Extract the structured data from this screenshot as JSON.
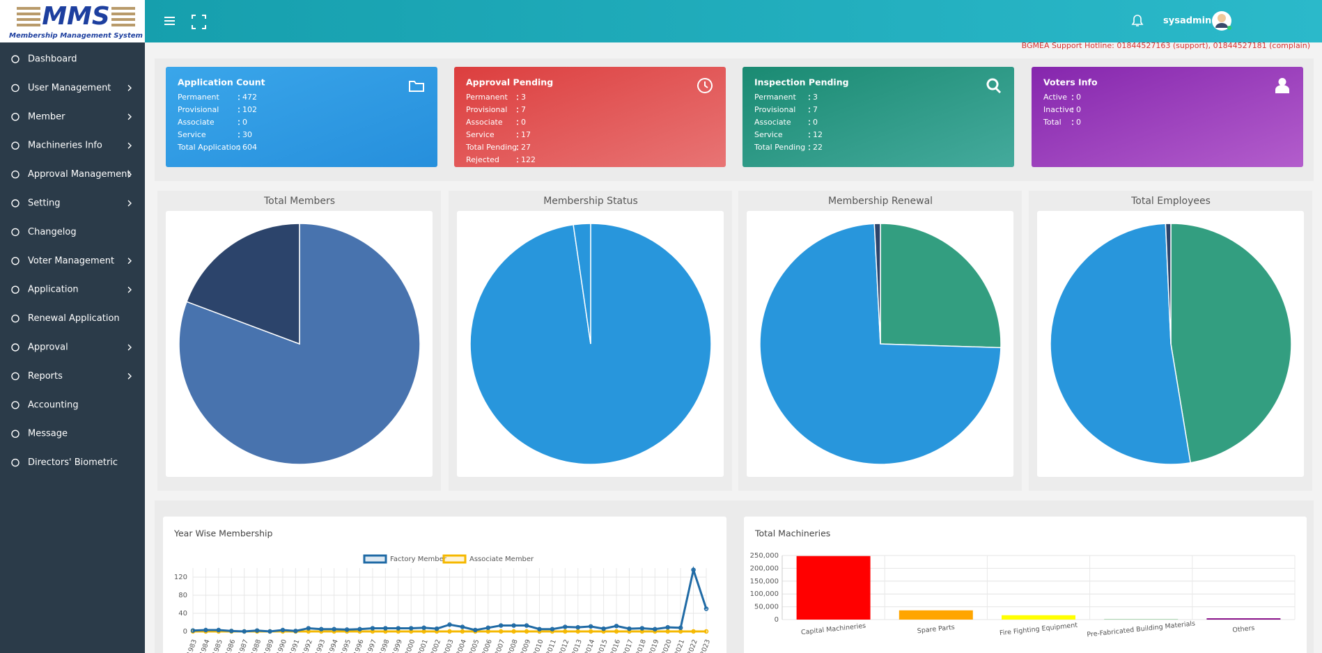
{
  "logo": {
    "mark": "MMS",
    "subtitle": "Membership Management System"
  },
  "menu": [
    {
      "label": "Dashboard",
      "submenu": false
    },
    {
      "label": "User Management",
      "submenu": true
    },
    {
      "label": "Member",
      "submenu": true
    },
    {
      "label": "Machineries Info",
      "submenu": true
    },
    {
      "label": "Approval Management",
      "submenu": true
    },
    {
      "label": "Setting",
      "submenu": true
    },
    {
      "label": "Changelog",
      "submenu": false
    },
    {
      "label": "Voter Management",
      "submenu": true
    },
    {
      "label": "Application",
      "submenu": true
    },
    {
      "label": "Renewal Application",
      "submenu": false
    },
    {
      "label": "Approval",
      "submenu": true
    },
    {
      "label": "Reports",
      "submenu": true
    },
    {
      "label": "Accounting",
      "submenu": false
    },
    {
      "label": "Message",
      "submenu": false
    },
    {
      "label": "Directors' Biometric",
      "submenu": false
    }
  ],
  "header": {
    "user": "sysadmin",
    "hotline": "BGMEA Support Hotline: 01844527163 (support), 01844527181 (complain)"
  },
  "cards": [
    {
      "title": "Application Count",
      "icon": "folder",
      "colors": [
        "#3aa6ea",
        "#268fdc"
      ],
      "rows": [
        {
          "label": "Permanent",
          "value": 472
        },
        {
          "label": "Provisional",
          "value": 102
        },
        {
          "label": "Associate",
          "value": 0
        },
        {
          "label": "Service",
          "value": 30
        },
        {
          "label": "Total Application",
          "value": 604
        }
      ]
    },
    {
      "title": "Approval Pending",
      "icon": "clock",
      "colors": [
        "#dc3e3e",
        "#e87474"
      ],
      "rows": [
        {
          "label": "Permanent",
          "value": 3
        },
        {
          "label": "Provisional",
          "value": 7
        },
        {
          "label": "Associate",
          "value": 0
        },
        {
          "label": "Service",
          "value": 17
        },
        {
          "label": "Total Pending",
          "value": 27
        },
        {
          "label": "Rejected",
          "value": 122
        }
      ]
    },
    {
      "title": "Inspection Pending",
      "icon": "search",
      "colors": [
        "#1a8a72",
        "#44aa9c"
      ],
      "rows": [
        {
          "label": "Permanent",
          "value": 3
        },
        {
          "label": "Provisional",
          "value": 7
        },
        {
          "label": "Associate",
          "value": 0
        },
        {
          "label": "Service",
          "value": 12
        },
        {
          "label": "Total Pending",
          "value": 22
        }
      ]
    },
    {
      "title": "Voters Info",
      "icon": "user",
      "colors": [
        "#8526ad",
        "#b35dcc"
      ],
      "rows": [
        {
          "label": "Active",
          "value": 0
        },
        {
          "label": "Inactive",
          "value": 0
        },
        {
          "label": "Total",
          "value": 0
        }
      ]
    }
  ],
  "chart_data": [
    {
      "type": "pie",
      "title": "Total Members",
      "values": [
        80.7,
        19.3
      ],
      "colors": [
        "#4873ae",
        "#2c446b"
      ]
    },
    {
      "type": "pie",
      "title": "Membership Status",
      "values": [
        97.7,
        2.3
      ],
      "colors": [
        "#2896dc",
        "#2896dc"
      ]
    },
    {
      "type": "pie",
      "title": "Membership Renewal",
      "values": [
        25.5,
        73.7,
        0.8
      ],
      "colors": [
        "#339e80",
        "#2896dc",
        "#2c446b"
      ]
    },
    {
      "type": "pie",
      "title": "Total Employees",
      "values": [
        47.4,
        51.9,
        0.7
      ],
      "colors": [
        "#339e80",
        "#2896dc",
        "#2c446b"
      ]
    },
    {
      "type": "line",
      "title": "Year Wise Membership",
      "categories": [
        "1983",
        "1984",
        "1985",
        "1986",
        "1987",
        "1988",
        "1989",
        "1990",
        "1991",
        "1992",
        "1993",
        "1994",
        "1995",
        "1996",
        "1997",
        "1998",
        "1999",
        "2000",
        "2001",
        "2002",
        "2003",
        "2004",
        "2005",
        "2006",
        "2007",
        "2008",
        "2009",
        "2010",
        "2011",
        "2012",
        "2013",
        "2014",
        "2015",
        "2016",
        "2017",
        "2018",
        "2019",
        "2020",
        "2021",
        "2022",
        "2023"
      ],
      "series": [
        {
          "name": "Factory Member",
          "color": "#1f6aa5",
          "values": [
            2,
            3,
            3,
            1,
            0,
            2,
            0,
            3,
            1,
            7,
            5,
            5,
            4,
            5,
            7,
            7,
            7,
            7,
            8,
            6,
            15,
            10,
            3,
            8,
            13,
            13,
            13,
            5,
            5,
            10,
            9,
            11,
            6,
            12,
            6,
            7,
            5,
            9,
            8,
            136,
            50
          ]
        },
        {
          "name": "Associate Member",
          "color": "#f5b800",
          "values": [
            0,
            0,
            0,
            0,
            0,
            0,
            0,
            0,
            0,
            0,
            0,
            0,
            0,
            0,
            0,
            0,
            0,
            0,
            0,
            0,
            0,
            0,
            0,
            0,
            0,
            0,
            0,
            0,
            0,
            0,
            0,
            0,
            0,
            0,
            0,
            0,
            0,
            0,
            0,
            0,
            0
          ]
        }
      ],
      "ylim": [
        0,
        140
      ],
      "yticks": [
        0,
        40,
        80,
        120
      ],
      "grid": true
    },
    {
      "type": "bar",
      "title": "Total Machineries",
      "categories": [
        "Capital Machineries",
        "Spare Parts",
        "Fire Fighting Equipment",
        "Pre-Fabricated Building Materials",
        "Others"
      ],
      "values": [
        248000,
        36000,
        17000,
        1000,
        5000
      ],
      "colors": [
        "#ff0000",
        "#ffa500",
        "#ffff00",
        "#2e9e3e",
        "#800080"
      ],
      "ylim": [
        0,
        250000
      ],
      "yticks": [
        0,
        {
          "value": 50000,
          "label": "50,000"
        },
        {
          "value": 100000,
          "label": "100,000"
        },
        {
          "value": 150000,
          "label": "150,000"
        },
        {
          "value": 200000,
          "label": "200,000"
        },
        {
          "value": 250000,
          "label": "250,000"
        }
      ],
      "grid": true
    }
  ]
}
